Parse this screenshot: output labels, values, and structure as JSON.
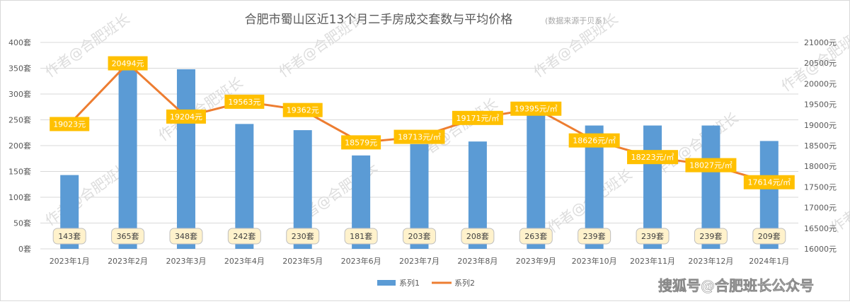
{
  "chart_data": {
    "type": "bar+line",
    "title": "合肥市蜀山区近13个月二手房成交套数与平均价格",
    "subtitle": "(数据来源于贝系)",
    "categories": [
      "2023年1月",
      "2023年2月",
      "2023年3月",
      "2023年4月",
      "2023年5月",
      "2023年6月",
      "2023年7月",
      "2023年8月",
      "2023年9月",
      "2023年10月",
      "2023年11月",
      "2023年12月",
      "2024年1月"
    ],
    "series": [
      {
        "name": "系列1",
        "type": "bar",
        "axis": "left",
        "color": "#5b9bd5",
        "values": [
          143,
          365,
          348,
          242,
          230,
          181,
          203,
          208,
          263,
          239,
          239,
          239,
          209
        ],
        "labels": [
          "143套",
          "365套",
          "348套",
          "242套",
          "230套",
          "181套",
          "203套",
          "208套",
          "263套",
          "239套",
          "239套",
          "239套",
          "209套"
        ]
      },
      {
        "name": "系列2",
        "type": "line",
        "axis": "right",
        "color": "#ed7d31",
        "values": [
          19023,
          20494,
          19204,
          19563,
          19362,
          18579,
          18713,
          19171,
          19395,
          18626,
          18223,
          18027,
          17614
        ],
        "labels": [
          "19023元",
          "20494元",
          "19204元",
          "19563元",
          "19362元",
          "18579元",
          "18713元/㎡",
          "19171元/㎡",
          "19395元/㎡",
          "18626元/㎡",
          "18223元/㎡",
          "18027元/㎡",
          "17614元/㎡"
        ]
      }
    ],
    "left_axis": {
      "range": [
        0,
        400
      ],
      "ticks": [
        "0套",
        "50套",
        "100套",
        "150套",
        "200套",
        "250套",
        "300套",
        "350套",
        "400套"
      ]
    },
    "right_axis": {
      "range": [
        16000,
        21000
      ],
      "ticks": [
        "16000元",
        "16500元",
        "17000元",
        "17500元",
        "18000元",
        "18500元",
        "19000元",
        "19500元",
        "20000元",
        "20500元",
        "21000元"
      ]
    },
    "grid": true,
    "legend": "bottom"
  },
  "watermark": "作者@合肥班长",
  "footer_watermark": "搜狐号@合肥班长公众号"
}
